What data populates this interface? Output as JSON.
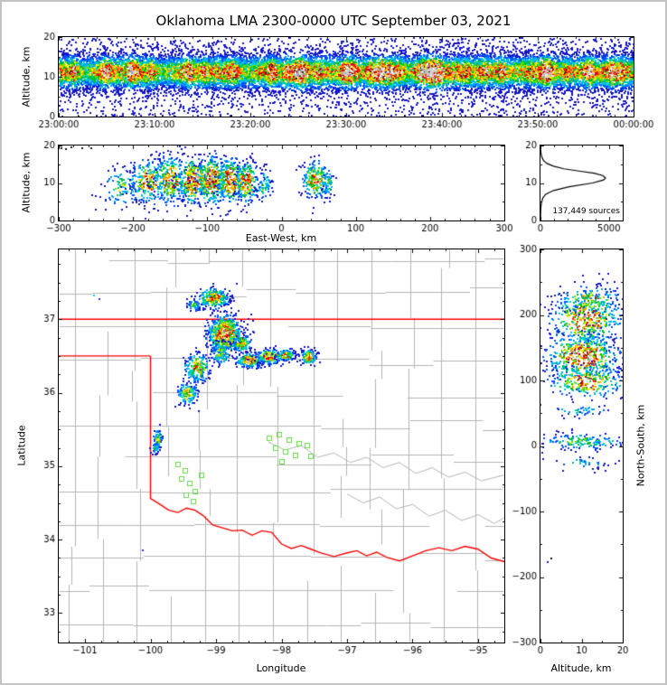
{
  "chart_data": {
    "type": "scatter",
    "subtype": "lma-multi-panel-density",
    "labels": {
      "title": "Oklahoma LMA 2300-0000 UTC September 03, 2021",
      "altitude_km": "Altitude, km",
      "east_west": "East-West, km",
      "longitude": "Longitude",
      "latitude": "Latitude",
      "north_south": "North-South, km"
    },
    "colormap": [
      [
        0.0,
        "#1414c8"
      ],
      [
        0.09,
        "#0050ff"
      ],
      [
        0.18,
        "#00a0ff"
      ],
      [
        0.27,
        "#00d2c8"
      ],
      [
        0.36,
        "#00be28"
      ],
      [
        0.46,
        "#78dc00"
      ],
      [
        0.55,
        "#ffe600"
      ],
      [
        0.65,
        "#ff9b00"
      ],
      [
        0.75,
        "#ff2000"
      ],
      [
        0.85,
        "#c80000"
      ],
      [
        0.93,
        "#641414"
      ]
    ],
    "colormap_white_threshold": 0.97,
    "panels": {
      "time_height": {
        "seed": 11,
        "x_range": [
          0,
          3600
        ],
        "y_range": [
          0,
          20
        ],
        "x_major": [
          0,
          600,
          1200,
          1800,
          2400,
          3000,
          3600
        ],
        "x_labels": [
          "23:00:00",
          "23:10:00",
          "23:20:00",
          "23:30:00",
          "23:40:00",
          "23:50:00",
          "00:00:00"
        ],
        "x_minor_step": 120,
        "y_major": [
          0,
          10,
          20
        ],
        "y_labels": [
          "0",
          "10",
          "20"
        ],
        "y_minor": [
          5,
          15
        ],
        "band": {
          "cy": 11.4,
          "sy": 2.3,
          "n": 19000,
          "bg_frac": 0.12,
          "hotspots": 42
        }
      },
      "ew_height": {
        "seed": 23,
        "x_range": [
          -300,
          300
        ],
        "y_range": [
          0,
          20
        ],
        "x_major": [
          -300,
          -200,
          -100,
          0,
          100,
          200,
          300
        ],
        "x_labels": [
          "−300",
          "−200",
          "−100",
          "0",
          "100",
          "200",
          "300"
        ],
        "x_minor_step": 20,
        "y_major": [
          0,
          10,
          20
        ],
        "y_labels": [
          "0",
          "10",
          "20"
        ],
        "y_minor": [
          5,
          15
        ],
        "blobs": [
          [
            -215,
            9,
            14,
            2.6,
            0.5,
            120
          ],
          [
            -180,
            10.5,
            13,
            3.0,
            0.8,
            260
          ],
          [
            -150,
            11,
            11,
            3.2,
            0.9,
            300
          ],
          [
            -120,
            11,
            11,
            3.2,
            0.95,
            330
          ],
          [
            -95,
            11,
            11,
            3.2,
            1.0,
            400
          ],
          [
            -70,
            11,
            9,
            3.0,
            1.0,
            330
          ],
          [
            -48,
            10.5,
            8,
            2.8,
            0.9,
            250
          ],
          [
            -25,
            9.5,
            6,
            2.2,
            0.45,
            70
          ],
          [
            45,
            11,
            9,
            2.5,
            0.85,
            220
          ],
          [
            62,
            10,
            4,
            1.8,
            0.5,
            50
          ]
        ],
        "dots": [
          [
            -298,
            19.6,
            "#151515"
          ],
          [
            -291,
            19.2,
            "#151515"
          ],
          [
            -284,
            19.7,
            "#151515"
          ],
          [
            -270,
            19.4,
            "#151515"
          ],
          [
            -258,
            19.6,
            "#151515"
          ]
        ]
      },
      "histogram": {
        "seed": 5,
        "x_range": [
          0,
          6000
        ],
        "y_range": [
          0,
          20
        ],
        "x_major": [
          0,
          5000
        ],
        "x_labels": [
          "0",
          "5000"
        ],
        "x_minor_step": 1000,
        "y_major": [
          0,
          10,
          20
        ],
        "y_labels": [
          "0",
          "10",
          "20"
        ],
        "y_minor": [
          5,
          15
        ],
        "annotation": "137,449 sources",
        "curve": [
          [
            0,
            0
          ],
          [
            5,
            1
          ],
          [
            10,
            2
          ],
          [
            20,
            3
          ],
          [
            40,
            4
          ],
          [
            90,
            5
          ],
          [
            170,
            6
          ],
          [
            380,
            7
          ],
          [
            950,
            8
          ],
          [
            2100,
            9
          ],
          [
            3800,
            10
          ],
          [
            4600,
            10.8
          ],
          [
            4750,
            11.3
          ],
          [
            4550,
            12
          ],
          [
            3900,
            12.6
          ],
          [
            2800,
            13.2
          ],
          [
            1700,
            13.8
          ],
          [
            950,
            14.5
          ],
          [
            480,
            15.2
          ],
          [
            220,
            16
          ],
          [
            90,
            17
          ],
          [
            35,
            18
          ],
          [
            12,
            19
          ],
          [
            0,
            20
          ]
        ]
      },
      "plan_view": {
        "seed": 37,
        "x_range": [
          -101.4,
          -94.6
        ],
        "y_range": [
          32.6,
          37.95
        ],
        "x_major": [
          -101,
          -100,
          -99,
          -98,
          -97,
          -96,
          -95
        ],
        "x_labels": [
          "−101",
          "−100",
          "−99",
          "−98",
          "−97",
          "−96",
          "−95"
        ],
        "x_minor_step": 0.25,
        "y_major": [
          33,
          34,
          35,
          36,
          37
        ],
        "y_labels": [
          "33",
          "34",
          "35",
          "36",
          "37"
        ],
        "y_minor_step": 0.25,
        "counties": {
          "color": "#b4b4b4",
          "dlon": 0.52,
          "dlat": 0.45,
          "start_lon": -101.25,
          "start_lat": 32.85
        },
        "rivers": [
          [
            [
              -98.2,
              35.33
            ],
            [
              -97.95,
              35.22
            ],
            [
              -97.7,
              35.28
            ],
            [
              -97.45,
              35.12
            ],
            [
              -97.2,
              35.18
            ],
            [
              -96.95,
              35.05
            ],
            [
              -96.7,
              35.12
            ],
            [
              -96.45,
              34.98
            ],
            [
              -96.2,
              35.05
            ],
            [
              -95.95,
              34.9
            ],
            [
              -95.7,
              34.98
            ],
            [
              -95.45,
              34.85
            ],
            [
              -95.2,
              34.92
            ],
            [
              -94.95,
              34.8
            ],
            [
              -94.6,
              34.88
            ]
          ],
          [
            [
              -97.0,
              34.62
            ],
            [
              -96.75,
              34.5
            ],
            [
              -96.5,
              34.58
            ],
            [
              -96.25,
              34.42
            ],
            [
              -96.0,
              34.48
            ],
            [
              -95.75,
              34.32
            ],
            [
              -95.5,
              34.4
            ],
            [
              -95.25,
              34.26
            ],
            [
              -95.0,
              34.34
            ],
            [
              -94.75,
              34.22
            ],
            [
              -94.6,
              34.3
            ]
          ]
        ],
        "state_border_color": "#ff0000",
        "state_borders": [
          [
            [
              -101.4,
              37.0
            ],
            [
              -94.6,
              37.0
            ]
          ],
          [
            [
              -101.4,
              36.5
            ],
            [
              -100.0,
              36.5
            ]
          ],
          [
            [
              -100.0,
              36.5
            ],
            [
              -100.0,
              34.56
            ],
            [
              -99.87,
              34.49
            ],
            [
              -99.72,
              34.4
            ],
            [
              -99.58,
              34.37
            ],
            [
              -99.45,
              34.43
            ],
            [
              -99.32,
              34.4
            ],
            [
              -99.2,
              34.33
            ],
            [
              -99.05,
              34.2
            ],
            [
              -98.9,
              34.16
            ],
            [
              -98.75,
              34.12
            ],
            [
              -98.6,
              34.13
            ],
            [
              -98.45,
              34.06
            ],
            [
              -98.3,
              34.12
            ],
            [
              -98.15,
              34.1
            ],
            [
              -98.0,
              33.94
            ],
            [
              -97.85,
              33.88
            ],
            [
              -97.7,
              33.92
            ],
            [
              -97.55,
              33.87
            ],
            [
              -97.4,
              33.82
            ],
            [
              -97.2,
              33.77
            ],
            [
              -97.0,
              33.82
            ],
            [
              -96.85,
              33.85
            ],
            [
              -96.7,
              33.78
            ],
            [
              -96.55,
              33.83
            ],
            [
              -96.4,
              33.76
            ],
            [
              -96.2,
              33.71
            ],
            [
              -96.0,
              33.78
            ],
            [
              -95.8,
              33.85
            ],
            [
              -95.6,
              33.89
            ],
            [
              -95.4,
              33.85
            ],
            [
              -95.2,
              33.91
            ],
            [
              -95.0,
              33.87
            ],
            [
              -94.8,
              33.75
            ],
            [
              -94.6,
              33.7
            ]
          ]
        ],
        "clusters": [
          [
            -99.05,
            37.3,
            0.12,
            0.07,
            0.85,
            260
          ],
          [
            -99.35,
            37.2,
            0.05,
            0.04,
            0.5,
            60
          ],
          [
            -98.88,
            36.82,
            0.13,
            0.13,
            1.0,
            700
          ],
          [
            -98.95,
            36.55,
            0.08,
            0.08,
            0.6,
            120
          ],
          [
            -99.3,
            36.35,
            0.1,
            0.1,
            0.75,
            220
          ],
          [
            -99.45,
            36.0,
            0.08,
            0.08,
            0.7,
            150
          ],
          [
            -98.62,
            36.68,
            0.07,
            0.06,
            0.8,
            140
          ],
          [
            -98.5,
            36.45,
            0.1,
            0.05,
            0.9,
            220
          ],
          [
            -98.2,
            36.5,
            0.1,
            0.05,
            1.0,
            260
          ],
          [
            -97.95,
            36.52,
            0.07,
            0.04,
            0.8,
            150
          ],
          [
            -97.6,
            36.5,
            0.06,
            0.05,
            0.85,
            140
          ],
          [
            -99.9,
            35.38,
            0.035,
            0.07,
            0.6,
            70
          ],
          [
            -99.93,
            35.25,
            0.03,
            0.04,
            0.45,
            40
          ]
        ],
        "stations": {
          "color": "#66dd44",
          "points": [
            [
              -98.18,
              35.38
            ],
            [
              -98.03,
              35.43
            ],
            [
              -97.88,
              35.36
            ],
            [
              -97.73,
              35.3
            ],
            [
              -98.09,
              35.25
            ],
            [
              -97.94,
              35.19
            ],
            [
              -97.79,
              35.15
            ],
            [
              -97.61,
              35.28
            ],
            [
              -97.55,
              35.13
            ],
            [
              -97.99,
              35.06
            ],
            [
              -99.58,
              35.02
            ],
            [
              -99.47,
              34.94
            ],
            [
              -99.52,
              34.82
            ],
            [
              -99.4,
              34.76
            ],
            [
              -99.32,
              34.66
            ],
            [
              -99.46,
              34.6
            ],
            [
              -99.35,
              34.52
            ],
            [
              -99.22,
              34.88
            ]
          ]
        },
        "dots": [
          [
            -100.87,
            37.33,
            "#00ccee"
          ],
          [
            -100.8,
            37.28,
            "#2233dd"
          ],
          [
            -100.13,
            33.87,
            "#2233dd"
          ]
        ]
      },
      "ns_height": {
        "seed": 51,
        "x_range": [
          0,
          20
        ],
        "y_range": [
          -300,
          300
        ],
        "x_major": [
          0,
          10,
          20
        ],
        "x_labels": [
          "0",
          "10",
          "20"
        ],
        "x_minor": [
          5,
          15
        ],
        "y_major": [
          -300,
          -200,
          -100,
          0,
          100,
          200,
          300
        ],
        "y_labels": [
          "−300",
          "−200",
          "−100",
          "0",
          "100",
          "200",
          "300"
        ],
        "y_minor_step": 50,
        "blobs": [
          [
            11,
            195,
            4.5,
            20,
            0.9,
            480
          ],
          [
            10,
            138,
            4.5,
            17,
            1.0,
            560
          ],
          [
            11,
            100,
            5,
            13,
            0.8,
            280
          ],
          [
            12,
            225,
            4,
            10,
            0.7,
            140
          ],
          [
            10,
            8,
            5.5,
            7,
            0.45,
            170
          ],
          [
            9,
            55,
            4,
            5,
            0.3,
            40
          ],
          [
            11,
            -25,
            5,
            6,
            0.28,
            40
          ]
        ],
        "dots": [
          [
            1.5,
            -176,
            "#1a1acc"
          ],
          [
            2.5,
            -170,
            "#111111"
          ],
          [
            16,
            250,
            "#1a1acc"
          ]
        ]
      }
    }
  }
}
